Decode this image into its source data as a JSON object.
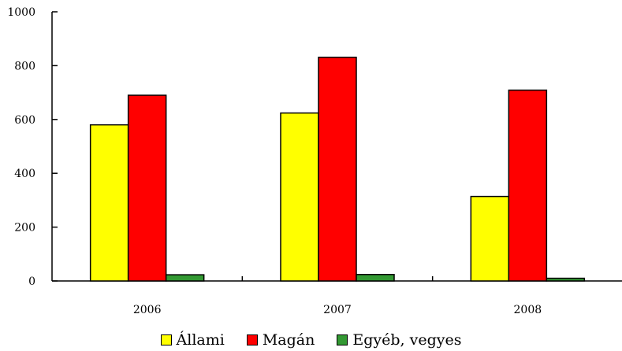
{
  "chart_data": {
    "type": "bar",
    "categories": [
      "2006",
      "2007",
      "2008"
    ],
    "series": [
      {
        "name": "Állami",
        "values": [
          580,
          624,
          314
        ],
        "color": "#ffff00"
      },
      {
        "name": "Magán",
        "values": [
          690,
          831,
          709
        ],
        "color": "#ff0000"
      },
      {
        "name": "Egyéb, vegyes",
        "values": [
          23,
          24,
          10
        ],
        "color": "#339933"
      }
    ],
    "title": "",
    "xlabel": "",
    "ylabel": "",
    "ylim": [
      0,
      1000
    ],
    "yticks": [
      0,
      200,
      400,
      600,
      800,
      1000
    ],
    "grid": false,
    "legend_position": "bottom"
  }
}
